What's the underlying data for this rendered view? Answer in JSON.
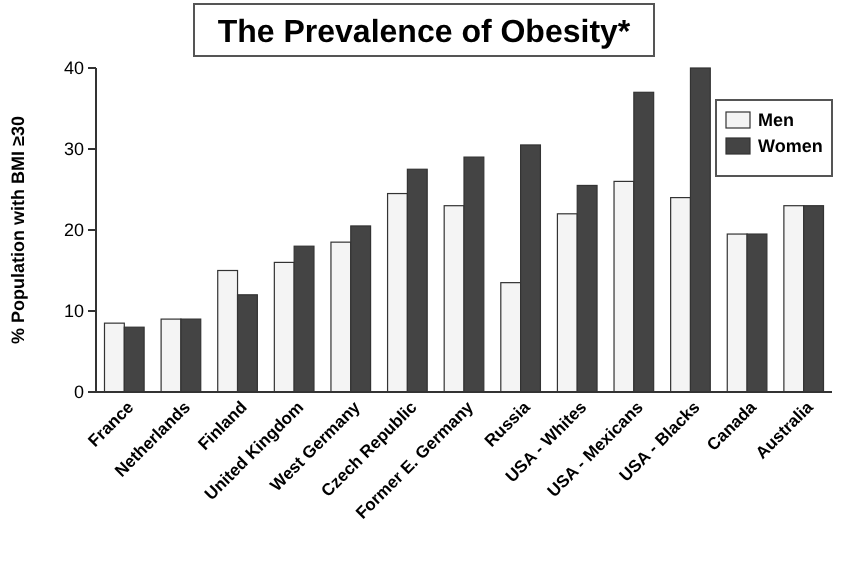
{
  "chart_data": {
    "type": "bar",
    "title": "The Prevalence of Obesity*",
    "ylabel": "% Population with BMI ≥30",
    "categories": [
      "France",
      "Netherlands",
      "Finland",
      "United Kingdom",
      "West Germany",
      "Czech Republic",
      "Former E. Germany",
      "Russia",
      "USA - Whites",
      "USA - Mexicans",
      "USA - Blacks",
      "Canada",
      "Australia"
    ],
    "series": [
      {
        "name": "Men",
        "color": "#f4f4f4",
        "values": [
          8.5,
          9,
          15,
          16,
          18.5,
          24.5,
          23,
          13.5,
          22,
          26,
          24,
          19.5,
          23
        ]
      },
      {
        "name": "Women",
        "color": "#444444",
        "values": [
          8,
          9,
          12,
          18,
          20.5,
          27.5,
          29,
          30.5,
          25.5,
          37,
          40,
          19.5,
          23
        ]
      }
    ],
    "ylim": [
      0,
      40
    ],
    "yticks": [
      0,
      10,
      20,
      30,
      40
    ],
    "legend": "top right"
  }
}
